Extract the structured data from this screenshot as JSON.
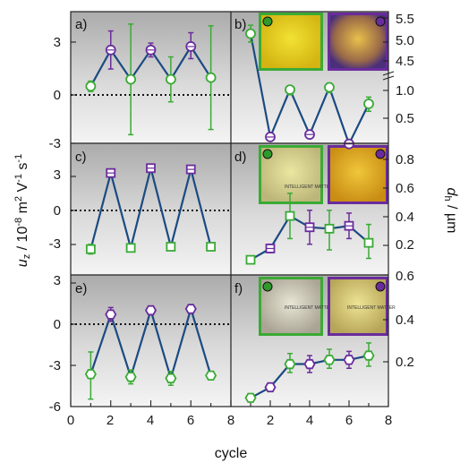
{
  "chart_data": [
    {
      "panel": "a)",
      "type": "scatter",
      "marker": "circle",
      "ylim": [
        -3,
        4.5
      ],
      "zero_line": true,
      "points": [
        {
          "x": 1,
          "y": 0.5,
          "lo": 0.2,
          "hi": 0.8,
          "color": "#3aaa35"
        },
        {
          "x": 2,
          "y": 2.6,
          "lo": 1.5,
          "hi": 3.7,
          "color": "#6a2c9c"
        },
        {
          "x": 3,
          "y": 0.9,
          "lo": -2.3,
          "hi": 4.1,
          "color": "#3aaa35"
        },
        {
          "x": 4,
          "y": 2.6,
          "lo": 2.2,
          "hi": 3.0,
          "color": "#6a2c9c"
        },
        {
          "x": 5,
          "y": 0.9,
          "lo": -0.4,
          "hi": 2.2,
          "color": "#3aaa35"
        },
        {
          "x": 6,
          "y": 2.8,
          "lo": 2.1,
          "hi": 3.6,
          "color": "#6a2c9c"
        },
        {
          "x": 7,
          "y": 1.0,
          "lo": -2.0,
          "hi": 4.0,
          "color": "#3aaa35"
        }
      ]
    },
    {
      "panel": "b)",
      "type": "scatter",
      "marker": "circle",
      "axis": "right",
      "scale": "broken-log",
      "right_ticks": [
        "5.5",
        "5.0",
        "4.5",
        "1.0",
        "0.5"
      ],
      "points": [
        {
          "x": 1,
          "y": 5.2,
          "lo": 5.0,
          "hi": 5.4,
          "color": "#3aaa35"
        },
        {
          "x": 2,
          "y": 0.32,
          "lo": 0.31,
          "hi": 0.33,
          "color": "#6a2c9c"
        },
        {
          "x": 3,
          "y": 1.02,
          "lo": 0.9,
          "hi": 1.12,
          "color": "#3aaa35"
        },
        {
          "x": 4,
          "y": 0.34,
          "lo": 0.32,
          "hi": 0.36,
          "color": "#6a2c9c"
        },
        {
          "x": 5,
          "y": 1.08,
          "lo": 0.95,
          "hi": 1.2,
          "color": "#3aaa35"
        },
        {
          "x": 6,
          "y": 0.27,
          "lo": 0.26,
          "hi": 0.28,
          "color": "#6a2c9c"
        },
        {
          "x": 7,
          "y": 0.72,
          "lo": 0.6,
          "hi": 0.85,
          "color": "#3aaa35"
        }
      ]
    },
    {
      "panel": "c)",
      "type": "scatter",
      "marker": "square",
      "ylim": [
        -6,
        6
      ],
      "zero_line": true,
      "points": [
        {
          "x": 1,
          "y": -3.2,
          "lo": -3.6,
          "hi": -2.8,
          "color": "#3aaa35"
        },
        {
          "x": 2,
          "y": 3.1,
          "lo": 2.8,
          "hi": 3.4,
          "color": "#6a2c9c"
        },
        {
          "x": 3,
          "y": -3.1,
          "lo": -3.3,
          "hi": -2.9,
          "color": "#3aaa35"
        },
        {
          "x": 4,
          "y": 3.5,
          "lo": 3.2,
          "hi": 3.8,
          "color": "#6a2c9c"
        },
        {
          "x": 5,
          "y": -3.0,
          "lo": -3.2,
          "hi": -2.8,
          "color": "#3aaa35"
        },
        {
          "x": 6,
          "y": 3.4,
          "lo": 3.2,
          "hi": 3.6,
          "color": "#6a2c9c"
        },
        {
          "x": 7,
          "y": -3.0,
          "lo": -3.2,
          "hi": -2.8,
          "color": "#3aaa35"
        }
      ]
    },
    {
      "panel": "d)",
      "type": "scatter",
      "marker": "square",
      "axis": "right",
      "right_ticks": [
        "0.8",
        "0.6",
        "0.4",
        "0.2"
      ],
      "points": [
        {
          "x": 1,
          "y": 0.05,
          "lo": 0.05,
          "hi": 0.05,
          "color": "#3aaa35"
        },
        {
          "x": 2,
          "y": 0.13,
          "lo": 0.1,
          "hi": 0.16,
          "color": "#6a2c9c"
        },
        {
          "x": 3,
          "y": 0.36,
          "lo": 0.2,
          "hi": 0.52,
          "color": "#3aaa35"
        },
        {
          "x": 4,
          "y": 0.28,
          "lo": 0.16,
          "hi": 0.4,
          "color": "#6a2c9c"
        },
        {
          "x": 5,
          "y": 0.27,
          "lo": 0.12,
          "hi": 0.4,
          "color": "#3aaa35"
        },
        {
          "x": 6,
          "y": 0.29,
          "lo": 0.2,
          "hi": 0.38,
          "color": "#6a2c9c"
        },
        {
          "x": 7,
          "y": 0.17,
          "lo": 0.06,
          "hi": 0.3,
          "color": "#3aaa35"
        }
      ]
    },
    {
      "panel": "e)",
      "type": "scatter",
      "marker": "hexagon",
      "ylim": [
        -6,
        3
      ],
      "zero_line": true,
      "points": [
        {
          "x": 1,
          "y": -3.6,
          "lo": -5.4,
          "hi": -2.0,
          "color": "#3aaa35"
        },
        {
          "x": 2,
          "y": 0.7,
          "lo": 0.2,
          "hi": 1.2,
          "color": "#6a2c9c"
        },
        {
          "x": 3,
          "y": -3.8,
          "lo": -4.3,
          "hi": -3.3,
          "color": "#3aaa35"
        },
        {
          "x": 4,
          "y": 1.0,
          "lo": 0.7,
          "hi": 1.3,
          "color": "#6a2c9c"
        },
        {
          "x": 5,
          "y": -3.9,
          "lo": -4.4,
          "hi": -3.4,
          "color": "#3aaa35"
        },
        {
          "x": 6,
          "y": 1.1,
          "lo": 0.8,
          "hi": 1.4,
          "color": "#6a2c9c"
        },
        {
          "x": 7,
          "y": -3.7,
          "lo": -4.0,
          "hi": -3.4,
          "color": "#3aaa35"
        }
      ]
    },
    {
      "panel": "f)",
      "type": "scatter",
      "marker": "hexagon",
      "axis": "right",
      "right_ticks": [
        "0.6",
        "0.4",
        "0.2"
      ],
      "points": [
        {
          "x": 1,
          "y": 0.02,
          "lo": 0.02,
          "hi": 0.02,
          "color": "#3aaa35"
        },
        {
          "x": 2,
          "y": 0.07,
          "lo": 0.07,
          "hi": 0.07,
          "color": "#6a2c9c"
        },
        {
          "x": 3,
          "y": 0.18,
          "lo": 0.14,
          "hi": 0.23,
          "color": "#3aaa35"
        },
        {
          "x": 4,
          "y": 0.18,
          "lo": 0.14,
          "hi": 0.22,
          "color": "#6a2c9c"
        },
        {
          "x": 5,
          "y": 0.2,
          "lo": 0.16,
          "hi": 0.25,
          "color": "#3aaa35"
        },
        {
          "x": 6,
          "y": 0.2,
          "lo": 0.16,
          "hi": 0.24,
          "color": "#6a2c9c"
        },
        {
          "x": 7,
          "y": 0.22,
          "lo": 0.17,
          "hi": 0.28,
          "color": "#3aaa35"
        }
      ]
    }
  ],
  "axes": {
    "xlabel": "cycle",
    "x_ticks": [
      "0",
      "2",
      "4",
      "6",
      "8"
    ],
    "x_ticks_right": [
      "2",
      "4",
      "6",
      "8"
    ],
    "left_ticks_ac": [
      "3",
      "0",
      "-3"
    ],
    "left_ticks_e": [
      "3",
      "0",
      "-3",
      "-6"
    ],
    "ylabel_left": "u_z / 10^-8 m^2 V^-1 s^-1",
    "ylabel_right": "d_h / µm"
  },
  "photo_text": "INTELLIGENT MATTER",
  "colors": {
    "line": "#1b4a82",
    "green": "#3aaa35",
    "purple": "#6a2c9c",
    "panel_bg": "#d3d3d3"
  }
}
